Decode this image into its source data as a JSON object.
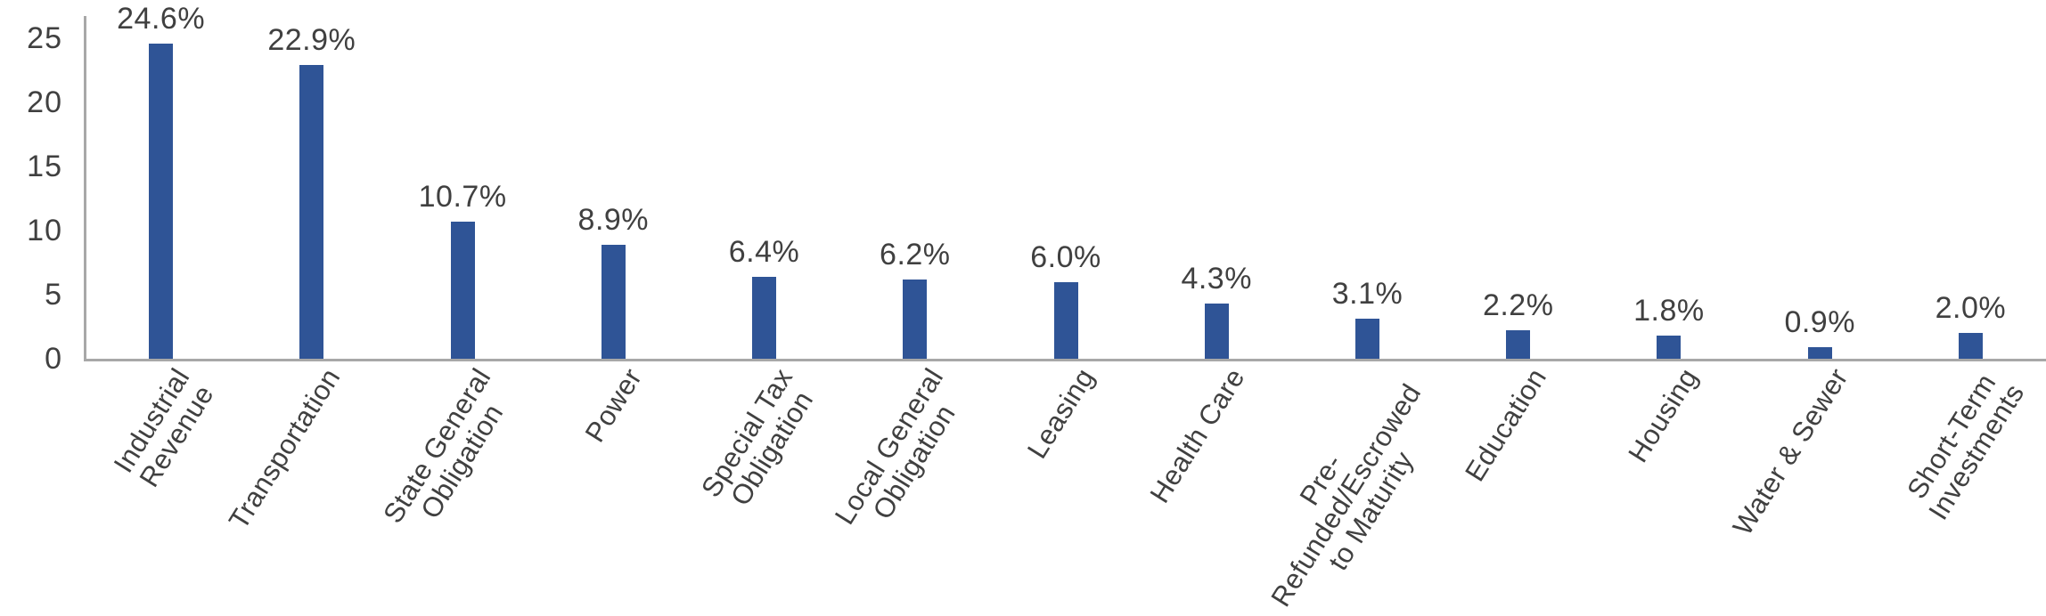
{
  "chart_data": {
    "type": "bar",
    "categories": [
      "Industrial\nRevenue",
      "Transportation",
      "State General\nObligation",
      "Power",
      "Special Tax\nObligation",
      "Local General\nObligation",
      "Leasing",
      "Health Care",
      "Pre-\nRefunded/Escrowed\nto Maturity",
      "Education",
      "Housing",
      "Water & Sewer",
      "Short-Term\nInvestments"
    ],
    "values": [
      24.6,
      22.9,
      10.7,
      8.9,
      6.4,
      6.2,
      6.0,
      4.3,
      3.1,
      2.2,
      1.8,
      0.9,
      2.0
    ],
    "value_labels": [
      "24.6%",
      "22.9%",
      "10.7%",
      "8.9%",
      "6.4%",
      "6.2%",
      "6.0%",
      "4.3%",
      "3.1%",
      "2.2%",
      "1.8%",
      "0.9%",
      "2.0%"
    ],
    "title": "",
    "xlabel": "",
    "ylabel": "",
    "ylim": [
      0,
      25
    ],
    "yticks": [
      0,
      5,
      10,
      15,
      20,
      25
    ],
    "grid": false,
    "legend": null,
    "x_label_rotation_deg": -58,
    "colors": {
      "bar": "#2F5496",
      "axis": "#A8A8A8",
      "text": "#404040"
    }
  }
}
